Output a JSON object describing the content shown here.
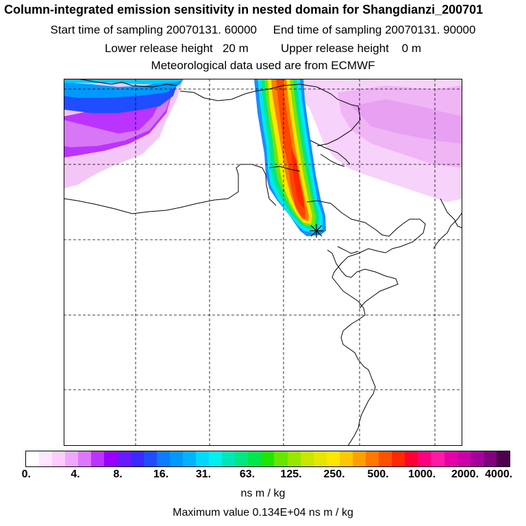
{
  "header": {
    "title": "Column-integrated emission sensitivity in nested domain for Shangdianzi_200701",
    "sampling": "Start time of sampling 20070131. 60000     End time of sampling 20070131. 90000",
    "release": "Lower release height   20 m          Upper release height    0 m",
    "met": "Meteorological data used are from ECMWF"
  },
  "map": {
    "station_marker": "receptor-star",
    "plume_colors": [
      "#1a8cff",
      "#00e6ff",
      "#00e68a",
      "#73e600",
      "#ffe600",
      "#ff8000",
      "#ff3300"
    ]
  },
  "colorbar": {
    "tick_labels": [
      "0.",
      "4.",
      "8.",
      "16.",
      "31.",
      "63.",
      "125.",
      "250.",
      "500.",
      "1000.",
      "2000.",
      "4000."
    ],
    "colors": [
      "#ffffff",
      "#ffe6ff",
      "#ffccff",
      "#f0a8ff",
      "#dd77ff",
      "#bb33ff",
      "#9900ff",
      "#6a1aff",
      "#3a2aff",
      "#1f4dff",
      "#0a7dff",
      "#0099ff",
      "#00b3ff",
      "#00d9ff",
      "#00f0f0",
      "#00e6b8",
      "#00e680",
      "#00e64d",
      "#1fe600",
      "#66e600",
      "#99e600",
      "#c8e600",
      "#e6e600",
      "#ffe600",
      "#ffc800",
      "#ffa000",
      "#ff7800",
      "#ff5000",
      "#ff2800",
      "#ff0033",
      "#ff0080",
      "#ff1aa6",
      "#e600a8",
      "#cc00aa",
      "#a6009b",
      "#800080",
      "#4d004d"
    ],
    "unit": "ns m / kg",
    "max_label": "Maximum value  0.134E+04 ns m / kg"
  }
}
